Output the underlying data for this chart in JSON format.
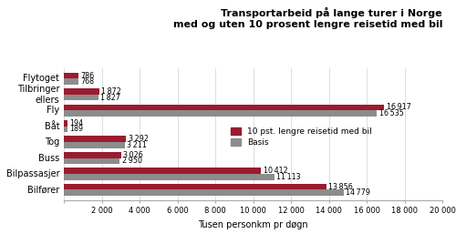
{
  "title_line1": "Transportarbeid på lange turer i Norge",
  "title_line2": "med og uten 10 prosent lengre reisetid med bil",
  "categories": [
    "Bilfører",
    "Bilpassasjer",
    "Buss",
    "Tog",
    "Båt",
    "Fly",
    "Tilbringer\nellers",
    "Flytoget"
  ],
  "values_red": [
    13856,
    10412,
    3026,
    3292,
    194,
    16917,
    1872,
    786
  ],
  "values_gray": [
    14779,
    11113,
    2950,
    3211,
    189,
    16535,
    1827,
    768
  ],
  "color_red": "#9B1B30",
  "color_gray": "#8C8C8C",
  "xlabel": "Tusen personkm pr døgn",
  "xlim": [
    0,
    20000
  ],
  "xticks": [
    0,
    2000,
    4000,
    6000,
    8000,
    10000,
    12000,
    14000,
    16000,
    18000,
    20000
  ],
  "legend_red": "10 pst. lengre reisetid med bil",
  "legend_gray": "Basis",
  "background_color": "#ffffff",
  "bar_height": 0.38,
  "value_fontsize": 5.8,
  "label_fontsize": 7.0,
  "title_fontsize": 8.0
}
